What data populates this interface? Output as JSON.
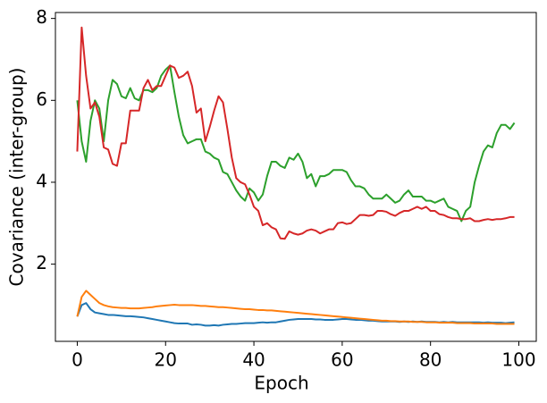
{
  "chart_data": {
    "type": "line",
    "xlabel": "Epoch",
    "ylabel": "Covariance (inter-group)",
    "x": [
      0,
      1,
      2,
      3,
      4,
      5,
      6,
      7,
      8,
      9,
      10,
      11,
      12,
      13,
      14,
      15,
      16,
      17,
      18,
      19,
      20,
      21,
      22,
      23,
      24,
      25,
      26,
      27,
      28,
      29,
      30,
      31,
      32,
      33,
      34,
      35,
      36,
      37,
      38,
      39,
      40,
      41,
      42,
      43,
      44,
      45,
      46,
      47,
      48,
      49,
      50,
      51,
      52,
      53,
      54,
      55,
      56,
      57,
      58,
      59,
      60,
      61,
      62,
      63,
      64,
      65,
      66,
      67,
      68,
      69,
      70,
      71,
      72,
      73,
      74,
      75,
      76,
      77,
      78,
      79,
      80,
      81,
      82,
      83,
      84,
      85,
      86,
      87,
      88,
      89,
      90,
      91,
      92,
      93,
      94,
      95,
      96,
      97,
      98,
      99
    ],
    "xlim": [
      -4.95,
      103.95
    ],
    "xticks": [
      0,
      20,
      40,
      60,
      80,
      100
    ],
    "ylim": [
      0.115,
      8.145
    ],
    "yticks": [
      2,
      4,
      6,
      8
    ],
    "series": [
      {
        "color": "#1f77b4",
        "values": [
          0.72,
          1.0,
          1.05,
          0.9,
          0.82,
          0.8,
          0.78,
          0.76,
          0.76,
          0.75,
          0.74,
          0.73,
          0.73,
          0.72,
          0.71,
          0.7,
          0.68,
          0.66,
          0.64,
          0.62,
          0.6,
          0.58,
          0.56,
          0.55,
          0.55,
          0.55,
          0.52,
          0.53,
          0.52,
          0.5,
          0.5,
          0.51,
          0.5,
          0.52,
          0.53,
          0.54,
          0.54,
          0.55,
          0.56,
          0.56,
          0.56,
          0.57,
          0.58,
          0.57,
          0.58,
          0.58,
          0.6,
          0.62,
          0.64,
          0.65,
          0.66,
          0.66,
          0.66,
          0.66,
          0.65,
          0.65,
          0.64,
          0.64,
          0.64,
          0.65,
          0.66,
          0.66,
          0.65,
          0.64,
          0.64,
          0.63,
          0.62,
          0.62,
          0.61,
          0.6,
          0.6,
          0.6,
          0.6,
          0.59,
          0.6,
          0.59,
          0.6,
          0.59,
          0.6,
          0.59,
          0.59,
          0.59,
          0.58,
          0.59,
          0.58,
          0.59,
          0.58,
          0.58,
          0.58,
          0.58,
          0.58,
          0.58,
          0.57,
          0.58,
          0.57,
          0.57,
          0.57,
          0.56,
          0.57,
          0.58
        ]
      },
      {
        "color": "#ff7f0e",
        "values": [
          0.72,
          1.2,
          1.35,
          1.25,
          1.15,
          1.05,
          1.0,
          0.97,
          0.95,
          0.94,
          0.93,
          0.93,
          0.92,
          0.92,
          0.92,
          0.93,
          0.94,
          0.95,
          0.97,
          0.98,
          0.99,
          1.0,
          1.01,
          1.0,
          1.0,
          1.0,
          1.0,
          0.99,
          0.98,
          0.98,
          0.97,
          0.96,
          0.95,
          0.95,
          0.94,
          0.93,
          0.92,
          0.91,
          0.9,
          0.9,
          0.89,
          0.88,
          0.88,
          0.87,
          0.87,
          0.86,
          0.85,
          0.84,
          0.83,
          0.82,
          0.81,
          0.8,
          0.79,
          0.78,
          0.77,
          0.76,
          0.75,
          0.74,
          0.73,
          0.72,
          0.71,
          0.7,
          0.69,
          0.68,
          0.67,
          0.66,
          0.65,
          0.64,
          0.63,
          0.62,
          0.62,
          0.61,
          0.61,
          0.6,
          0.6,
          0.6,
          0.59,
          0.59,
          0.59,
          0.58,
          0.58,
          0.58,
          0.57,
          0.57,
          0.57,
          0.57,
          0.56,
          0.56,
          0.56,
          0.56,
          0.55,
          0.55,
          0.55,
          0.55,
          0.55,
          0.54,
          0.54,
          0.54,
          0.54,
          0.54
        ]
      },
      {
        "color": "#2ca02c",
        "values": [
          6.0,
          5.0,
          4.5,
          5.5,
          6.0,
          5.8,
          5.0,
          6.0,
          6.5,
          6.4,
          6.1,
          6.05,
          6.3,
          6.05,
          6.0,
          6.25,
          6.25,
          6.2,
          6.3,
          6.6,
          6.75,
          6.85,
          6.2,
          5.6,
          5.15,
          4.95,
          5.0,
          5.05,
          5.05,
          4.75,
          4.7,
          4.6,
          4.55,
          4.25,
          4.2,
          4.0,
          3.8,
          3.65,
          3.55,
          3.85,
          3.75,
          3.55,
          3.7,
          4.15,
          4.5,
          4.5,
          4.4,
          4.35,
          4.6,
          4.55,
          4.7,
          4.5,
          4.1,
          4.2,
          3.9,
          4.15,
          4.15,
          4.2,
          4.3,
          4.3,
          4.3,
          4.25,
          4.05,
          3.9,
          3.9,
          3.85,
          3.7,
          3.6,
          3.6,
          3.6,
          3.7,
          3.6,
          3.5,
          3.55,
          3.7,
          3.8,
          3.65,
          3.65,
          3.65,
          3.55,
          3.55,
          3.5,
          3.55,
          3.6,
          3.4,
          3.35,
          3.3,
          3.05,
          3.3,
          3.4,
          4.0,
          4.4,
          4.75,
          4.9,
          4.85,
          5.2,
          5.4,
          5.4,
          5.3,
          5.45
        ]
      },
      {
        "color": "#d62728",
        "values": [
          4.75,
          7.78,
          6.6,
          5.8,
          5.95,
          5.6,
          4.85,
          4.8,
          4.45,
          4.4,
          4.95,
          4.95,
          5.75,
          5.75,
          5.75,
          6.3,
          6.5,
          6.25,
          6.35,
          6.35,
          6.6,
          6.85,
          6.8,
          6.55,
          6.6,
          6.7,
          6.35,
          5.7,
          5.8,
          5.0,
          5.35,
          5.75,
          6.1,
          5.95,
          5.3,
          4.6,
          4.1,
          4.0,
          3.95,
          3.7,
          3.4,
          3.3,
          2.95,
          3.0,
          2.9,
          2.85,
          2.63,
          2.62,
          2.8,
          2.75,
          2.72,
          2.75,
          2.82,
          2.85,
          2.82,
          2.75,
          2.8,
          2.85,
          2.85,
          3.0,
          3.02,
          2.98,
          3.0,
          3.1,
          3.2,
          3.2,
          3.18,
          3.2,
          3.3,
          3.3,
          3.28,
          3.22,
          3.18,
          3.25,
          3.3,
          3.3,
          3.35,
          3.4,
          3.35,
          3.4,
          3.3,
          3.3,
          3.22,
          3.2,
          3.15,
          3.12,
          3.12,
          3.1,
          3.1,
          3.12,
          3.05,
          3.05,
          3.08,
          3.1,
          3.08,
          3.1,
          3.1,
          3.12,
          3.15,
          3.15
        ]
      }
    ]
  }
}
